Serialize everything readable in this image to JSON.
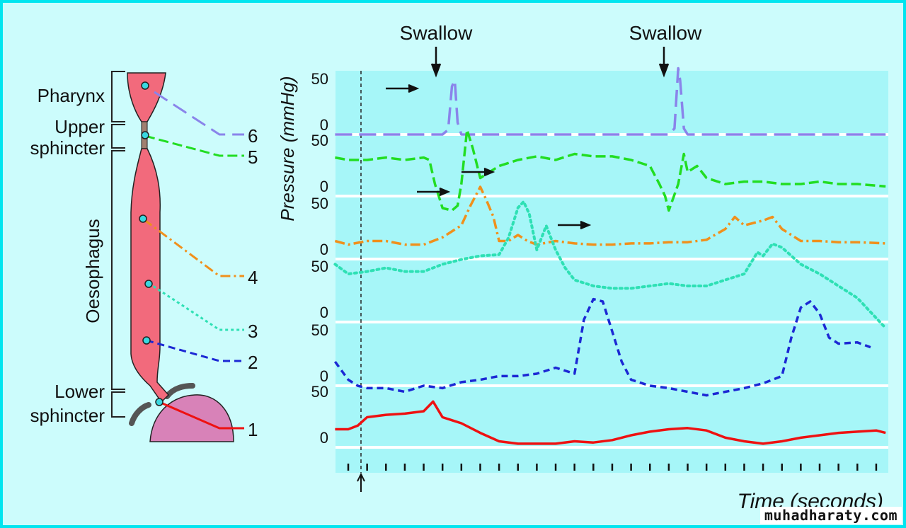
{
  "anatomy": {
    "labels": {
      "pharynx": "Pharynx",
      "upper_sphincter_line1": "Upper",
      "upper_sphincter_line2": "sphincter",
      "oesophagus": "Oesophagus",
      "lower_sphincter_line1": "Lower",
      "lower_sphincter_line2": "sphincter"
    },
    "sensor_numbers": [
      "6",
      "5",
      "4",
      "3",
      "2",
      "1"
    ],
    "colors": {
      "tissue": "#f26a7c",
      "stomach": "#d882b8",
      "sensor": "#39d8e0"
    }
  },
  "annotations": {
    "swallow_1": "Swallow",
    "swallow_2": "Swallow"
  },
  "watermark": "muhadharaty.com",
  "chart_data": {
    "type": "line",
    "title": "",
    "xlabel": "Time (seconds)",
    "ylabel": "Pressure (mmHg)",
    "x_ticks_count": 29,
    "x_unit": "seconds",
    "channel_ytick_labels": [
      "50",
      "0"
    ],
    "channel_ylim": [
      0,
      50
    ],
    "grid": true,
    "series": [
      {
        "name": "6 (Pharynx)",
        "color": "#8a84ea",
        "dash": "long-dash",
        "points": [
          [
            -0.7,
            0
          ],
          [
            5,
            0
          ],
          [
            5.3,
            4
          ],
          [
            5.5,
            40
          ],
          [
            5.65,
            45
          ],
          [
            5.8,
            10
          ],
          [
            6,
            0
          ],
          [
            17,
            0
          ],
          [
            17.3,
            5
          ],
          [
            17.5,
            55
          ],
          [
            17.6,
            45
          ],
          [
            17.8,
            5
          ],
          [
            18,
            0
          ],
          [
            28.5,
            0
          ]
        ]
      },
      {
        "name": "5 (Upper sphincter)",
        "color": "#22dd22",
        "dash": "dash",
        "points": [
          [
            -0.7,
            32
          ],
          [
            0,
            30
          ],
          [
            1,
            30
          ],
          [
            2,
            32
          ],
          [
            3,
            30
          ],
          [
            4,
            32
          ],
          [
            4.3,
            30
          ],
          [
            4.6,
            10
          ],
          [
            5,
            -10
          ],
          [
            5.5,
            -12
          ],
          [
            5.8,
            -8
          ],
          [
            6,
            10
          ],
          [
            6.3,
            55
          ],
          [
            6.6,
            40
          ],
          [
            7,
            15
          ],
          [
            7.5,
            20
          ],
          [
            8,
            25
          ],
          [
            9,
            30
          ],
          [
            10,
            33
          ],
          [
            11,
            30
          ],
          [
            12,
            35
          ],
          [
            13,
            33
          ],
          [
            14,
            33
          ],
          [
            15,
            30
          ],
          [
            16,
            25
          ],
          [
            16.5,
            10
          ],
          [
            16.8,
            0
          ],
          [
            17,
            -12
          ],
          [
            17.5,
            10
          ],
          [
            17.8,
            35
          ],
          [
            18,
            20
          ],
          [
            18.5,
            25
          ],
          [
            19,
            15
          ],
          [
            20,
            10
          ],
          [
            21,
            12
          ],
          [
            22,
            12
          ],
          [
            23,
            10
          ],
          [
            24,
            10
          ],
          [
            25,
            12
          ],
          [
            26,
            10
          ],
          [
            27,
            10
          ],
          [
            28.5,
            8
          ]
        ]
      },
      {
        "name": "4 (Oesophagus)",
        "color": "#f0901c",
        "dash": "dash-dot",
        "points": [
          [
            -0.7,
            15
          ],
          [
            0,
            12
          ],
          [
            1,
            15
          ],
          [
            2,
            15
          ],
          [
            3,
            12
          ],
          [
            4,
            12
          ],
          [
            5,
            18
          ],
          [
            6,
            28
          ],
          [
            6.5,
            45
          ],
          [
            7,
            60
          ],
          [
            7.3,
            50
          ],
          [
            7.7,
            35
          ],
          [
            8,
            15
          ],
          [
            8.5,
            15
          ],
          [
            9,
            20
          ],
          [
            9.5,
            15
          ],
          [
            10,
            12
          ],
          [
            11,
            15
          ],
          [
            12,
            13
          ],
          [
            13,
            12
          ],
          [
            14,
            12
          ],
          [
            15,
            13
          ],
          [
            16,
            13
          ],
          [
            17,
            14
          ],
          [
            18,
            14
          ],
          [
            19,
            16
          ],
          [
            20,
            25
          ],
          [
            20.5,
            35
          ],
          [
            21,
            28
          ],
          [
            21.5,
            30
          ],
          [
            22,
            32
          ],
          [
            22.5,
            35
          ],
          [
            23,
            25
          ],
          [
            23.5,
            20
          ],
          [
            24,
            15
          ],
          [
            25,
            15
          ],
          [
            26,
            14
          ],
          [
            27,
            14
          ],
          [
            28.5,
            13
          ]
        ]
      },
      {
        "name": "3 (Oesophagus)",
        "color": "#2ee0b4",
        "dash": "dot",
        "points": [
          [
            -0.7,
            48
          ],
          [
            0,
            40
          ],
          [
            1,
            42
          ],
          [
            2,
            45
          ],
          [
            3,
            42
          ],
          [
            4,
            42
          ],
          [
            5,
            48
          ],
          [
            6,
            52
          ],
          [
            7,
            55
          ],
          [
            8,
            56
          ],
          [
            8.5,
            70
          ],
          [
            9,
            95
          ],
          [
            9.3,
            100
          ],
          [
            9.6,
            90
          ],
          [
            10,
            60
          ],
          [
            10.5,
            80
          ],
          [
            11,
            60
          ],
          [
            11.5,
            45
          ],
          [
            12,
            35
          ],
          [
            13,
            30
          ],
          [
            14,
            28
          ],
          [
            15,
            28
          ],
          [
            16,
            30
          ],
          [
            17,
            32
          ],
          [
            18,
            30
          ],
          [
            19,
            30
          ],
          [
            20,
            35
          ],
          [
            21,
            40
          ],
          [
            21.7,
            58
          ],
          [
            22,
            55
          ],
          [
            22.5,
            65
          ],
          [
            23,
            62
          ],
          [
            24,
            48
          ],
          [
            25,
            40
          ],
          [
            26,
            30
          ],
          [
            27,
            20
          ],
          [
            28.5,
            -5
          ]
        ]
      },
      {
        "name": "2 (Oesophagus)",
        "color": "#1c28d4",
        "dash": "short-dash",
        "points": [
          [
            -0.7,
            20
          ],
          [
            0,
            5
          ],
          [
            0.5,
            0
          ],
          [
            1,
            -2
          ],
          [
            2,
            -2
          ],
          [
            3,
            -5
          ],
          [
            4,
            0
          ],
          [
            5,
            -2
          ],
          [
            6,
            3
          ],
          [
            7,
            5
          ],
          [
            8,
            8
          ],
          [
            9,
            8
          ],
          [
            10,
            10
          ],
          [
            11,
            15
          ],
          [
            12,
            10
          ],
          [
            12.5,
            55
          ],
          [
            13,
            72
          ],
          [
            13.5,
            70
          ],
          [
            14,
            45
          ],
          [
            14.5,
            20
          ],
          [
            15,
            5
          ],
          [
            16,
            0
          ],
          [
            17,
            -2
          ],
          [
            18,
            -5
          ],
          [
            19,
            -8
          ],
          [
            20,
            -5
          ],
          [
            21,
            -2
          ],
          [
            22,
            2
          ],
          [
            23,
            8
          ],
          [
            23.5,
            40
          ],
          [
            24,
            65
          ],
          [
            24.5,
            70
          ],
          [
            25,
            60
          ],
          [
            25.5,
            40
          ],
          [
            26,
            35
          ],
          [
            27,
            36
          ],
          [
            27.7,
            32
          ]
        ]
      },
      {
        "name": "1 (Lower sphincter)",
        "color": "#ee1111",
        "dash": "solid",
        "points": [
          [
            -0.7,
            15
          ],
          [
            0,
            15
          ],
          [
            0.5,
            18
          ],
          [
            1,
            25
          ],
          [
            2,
            27
          ],
          [
            3,
            28
          ],
          [
            4,
            30
          ],
          [
            4.5,
            38
          ],
          [
            5,
            25
          ],
          [
            6,
            20
          ],
          [
            7,
            12
          ],
          [
            8,
            5
          ],
          [
            9,
            3
          ],
          [
            10,
            3
          ],
          [
            11,
            3
          ],
          [
            12,
            5
          ],
          [
            13,
            4
          ],
          [
            14,
            6
          ],
          [
            15,
            10
          ],
          [
            16,
            13
          ],
          [
            17,
            15
          ],
          [
            18,
            16
          ],
          [
            19,
            14
          ],
          [
            20,
            8
          ],
          [
            21,
            5
          ],
          [
            22,
            3
          ],
          [
            23,
            5
          ],
          [
            24,
            8
          ],
          [
            25,
            10
          ],
          [
            26,
            12
          ],
          [
            27,
            13
          ],
          [
            28,
            14
          ],
          [
            28.5,
            12
          ]
        ]
      }
    ],
    "annotations": [
      "Swallow",
      "Swallow"
    ]
  }
}
